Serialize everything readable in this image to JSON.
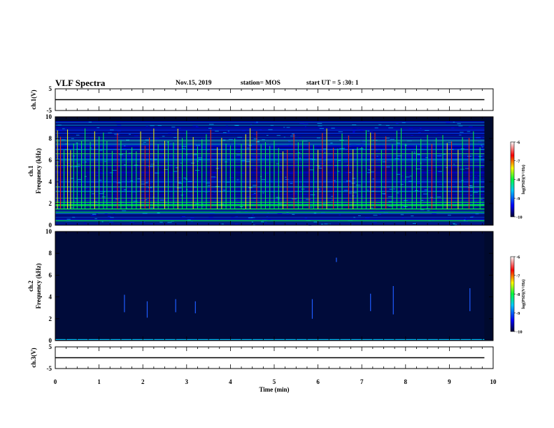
{
  "header": {
    "title": "VLF Spectra",
    "date": "Nov.15, 2019",
    "station": "station= MOS",
    "start": "start UT = 5 :30: 1"
  },
  "colors": {
    "background": "#000a2e",
    "waveform": "#000000",
    "colormap": [
      "#000033",
      "#0000ff",
      "#00c8ff",
      "#00ff40",
      "#ffff00",
      "#ff0000",
      "#ffffff"
    ]
  },
  "chart_data": [
    {
      "id": "ch1-waveform",
      "type": "line",
      "ylabel": "ch.1(V)",
      "ylim": [
        -5,
        5
      ],
      "yticks": [
        "5",
        "-5"
      ],
      "x": [
        0,
        9.8
      ],
      "values": [
        0,
        0
      ]
    },
    {
      "id": "ch1-spectrogram",
      "type": "heatmap",
      "ylabel": "ch.1 Frequency (kHz)",
      "ylim": [
        0,
        10
      ],
      "yticks": [
        "0",
        "2",
        "4",
        "6",
        "8",
        "10"
      ],
      "xlim": [
        0,
        10
      ],
      "data_xmax": 9.8,
      "noise_top_khz": 9.6,
      "colorbar": {
        "label": "log(PSD)(V²/Hz)",
        "ticks": [
          "-6",
          "-7",
          "-8",
          "-9",
          "-10"
        ],
        "range": [
          -10,
          -6
        ]
      },
      "hum_lines_khz": [
        0.4,
        1.2,
        1.5,
        1.8,
        1.9,
        2.1,
        2.5,
        3.1,
        3.5,
        4.0,
        5.5,
        6.0,
        6.6,
        7.5,
        7.8
      ],
      "sferics_min": [
        0.05,
        0.12,
        0.2,
        0.28,
        0.35,
        0.42,
        0.5,
        0.6,
        0.68,
        0.8,
        0.9,
        1.0,
        1.1,
        1.18,
        1.3,
        1.42,
        1.5,
        1.62,
        1.75,
        1.85,
        1.95,
        2.05,
        2.15,
        2.25,
        2.35,
        2.5,
        2.58,
        2.7,
        2.8,
        2.9,
        3.0,
        3.15,
        3.25,
        3.35,
        3.45,
        3.55,
        3.7,
        3.8,
        3.9,
        4.0,
        4.1,
        4.25,
        4.35,
        4.45,
        4.6,
        4.7,
        4.8,
        4.9,
        5.0,
        5.1,
        5.2,
        5.3,
        5.45,
        5.55,
        5.65,
        5.8,
        5.9,
        6.0,
        6.1,
        6.2,
        6.35,
        6.45,
        6.55,
        6.7,
        6.8,
        6.9,
        7.0,
        7.1,
        7.2,
        7.3,
        7.45,
        7.55,
        7.7,
        7.8,
        7.9,
        8.0,
        8.15,
        8.25,
        8.35,
        8.5,
        8.6,
        8.7,
        8.85,
        8.95,
        9.05,
        9.2,
        9.3,
        9.45,
        9.55,
        9.7
      ]
    },
    {
      "id": "ch2-spectrogram",
      "type": "heatmap",
      "ylabel": "ch.2 Frequency (kHz)",
      "ylim": [
        0,
        10
      ],
      "yticks": [
        "0",
        "2",
        "4",
        "6",
        "8",
        "10"
      ],
      "xlim": [
        0,
        10
      ],
      "data_xmax": 9.8,
      "colorbar": {
        "label": "log(PSD)(V²/Hz)",
        "ticks": [
          "-6",
          "-7",
          "-8",
          "-9",
          "-10"
        ],
        "range": [
          -10,
          -6
        ]
      },
      "baseline_khz": 0.1,
      "events": [
        {
          "t": 1.58,
          "f0": 2.6,
          "f1": 4.2
        },
        {
          "t": 2.1,
          "f0": 2.1,
          "f1": 3.6
        },
        {
          "t": 2.75,
          "f0": 2.6,
          "f1": 3.8
        },
        {
          "t": 3.2,
          "f0": 2.5,
          "f1": 3.6
        },
        {
          "t": 5.87,
          "f0": 2.0,
          "f1": 3.8
        },
        {
          "t": 6.42,
          "f0": 7.2,
          "f1": 7.6
        },
        {
          "t": 7.2,
          "f0": 2.7,
          "f1": 4.3
        },
        {
          "t": 7.72,
          "f0": 2.4,
          "f1": 5.0
        },
        {
          "t": 9.47,
          "f0": 2.7,
          "f1": 4.8
        }
      ]
    },
    {
      "id": "ch3-waveform",
      "type": "line",
      "ylabel": "ch.3(V)",
      "ylim": [
        -5,
        5
      ],
      "yticks": [
        "5",
        "-5"
      ],
      "x": [
        0,
        9.8
      ],
      "values": [
        0,
        0
      ]
    }
  ],
  "xaxis": {
    "label": "Time (min)",
    "xlim": [
      0,
      10
    ],
    "ticks": [
      "0",
      "1",
      "2",
      "3",
      "4",
      "5",
      "6",
      "7",
      "8",
      "9",
      "10"
    ]
  }
}
